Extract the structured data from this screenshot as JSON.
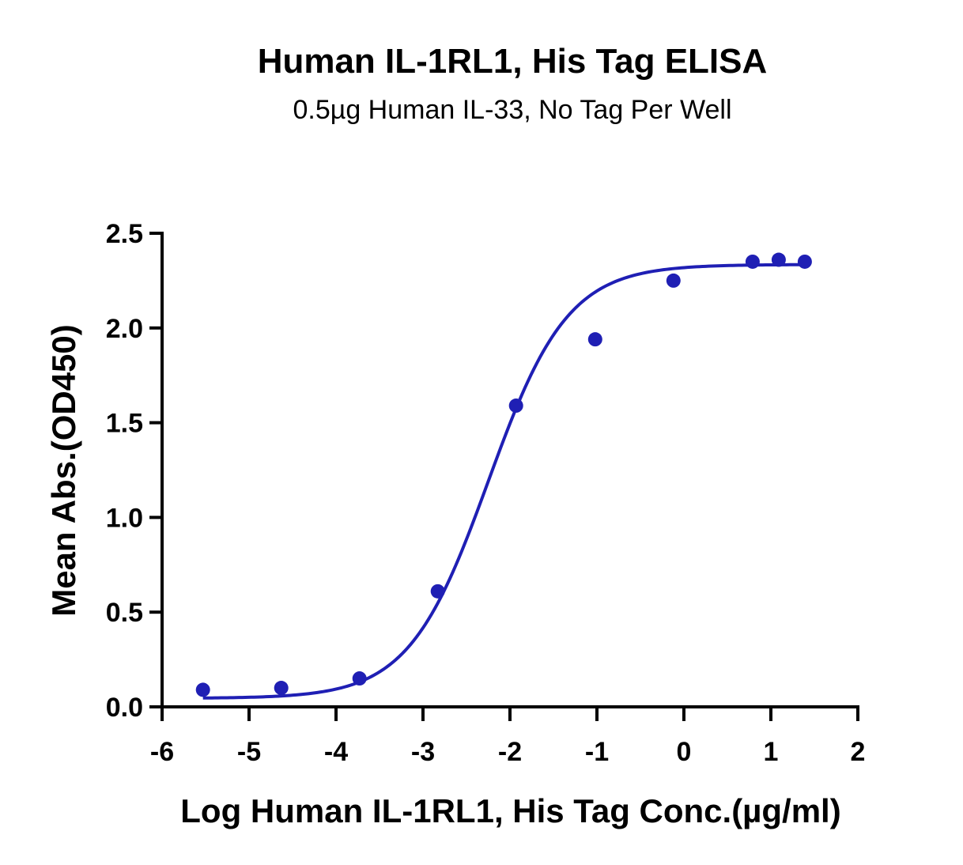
{
  "chart_data": {
    "type": "scatter",
    "title": "Human IL-1RL1, His Tag ELISA",
    "subtitle": "0.5µg Human IL-33, No Tag Per Well",
    "xlabel": "Log Human IL-1RL1, His Tag Conc.(µg/ml)",
    "ylabel": "Mean Abs.(OD450)",
    "xlim": [
      -6,
      2
    ],
    "ylim": [
      0,
      2.5
    ],
    "x_ticks": [
      -6,
      -5,
      -4,
      -3,
      -2,
      -1,
      0,
      1,
      2
    ],
    "x_tick_labels": [
      "-6",
      "-5",
      "-4",
      "-3",
      "-2",
      "-1",
      "0",
      "1",
      "2"
    ],
    "y_ticks": [
      0,
      0.5,
      1,
      1.5,
      2,
      2.5
    ],
    "y_tick_labels": [
      "0.0",
      "0.5",
      "1.0",
      "1.5",
      "2.0",
      "2.5"
    ],
    "grid": false,
    "color": "#1f1fb4",
    "series": [
      {
        "points": [
          {
            "x": -5.53,
            "y": 0.09
          },
          {
            "x": -4.63,
            "y": 0.1
          },
          {
            "x": -3.73,
            "y": 0.15
          },
          {
            "x": -2.83,
            "y": 0.61
          },
          {
            "x": -1.93,
            "y": 1.59
          },
          {
            "x": -1.02,
            "y": 1.94
          },
          {
            "x": -0.12,
            "y": 2.25
          },
          {
            "x": 0.79,
            "y": 2.35
          },
          {
            "x": 1.09,
            "y": 2.36
          },
          {
            "x": 1.39,
            "y": 2.35
          }
        ]
      }
    ],
    "fit_curve": {
      "model": "4PL",
      "bottom": 0.045,
      "top": 2.335,
      "log_ec50": -2.25,
      "hill_slope": 0.95,
      "x_range": [
        -5.53,
        1.39
      ]
    }
  }
}
